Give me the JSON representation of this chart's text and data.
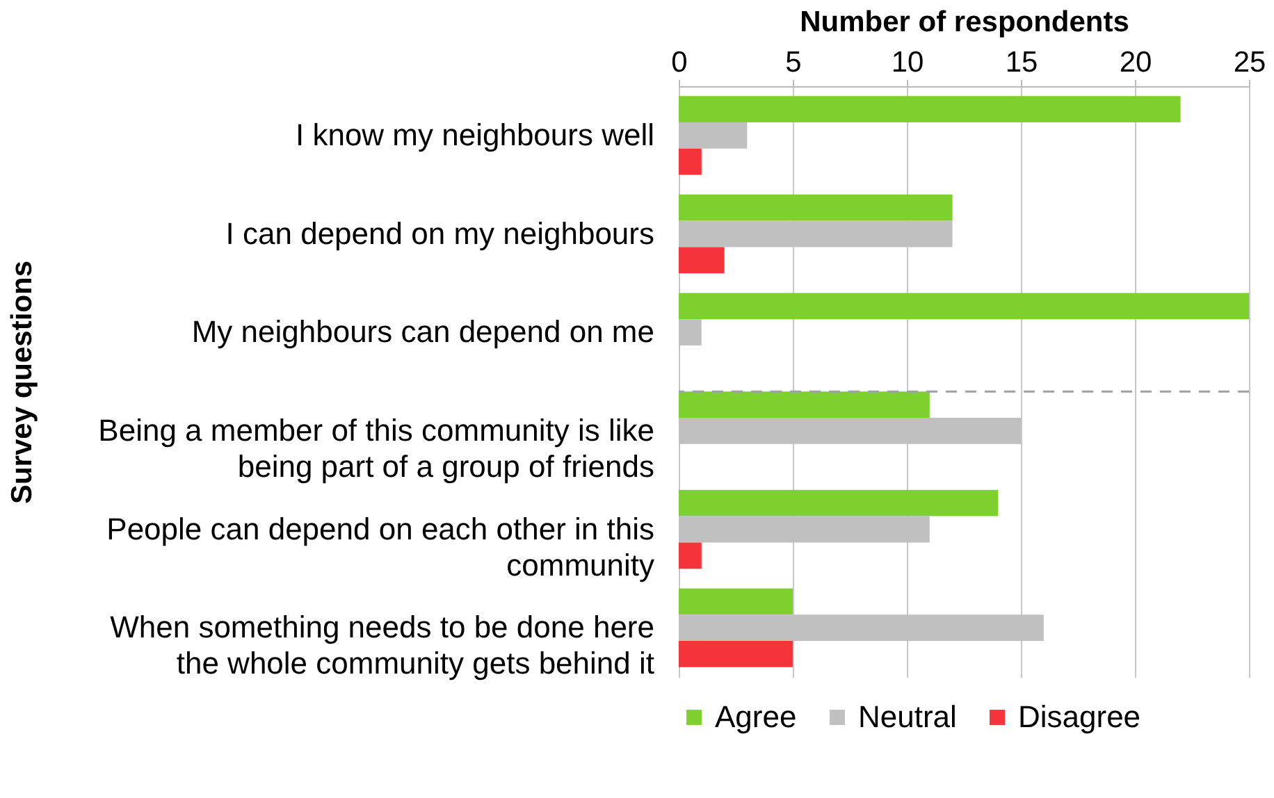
{
  "chart_data": {
    "type": "bar",
    "orientation": "horizontal",
    "xlabel": "Number of respondents",
    "ylabel": "Survey questions",
    "categories": [
      "I know my neighbours well",
      "I can depend on my neighbours",
      "My neighbours can depend on me",
      "Being a member of this community is like being part of a group of friends",
      "People can depend on each other in this community",
      "When something needs to be done here the whole community gets behind it"
    ],
    "series": [
      {
        "name": "Agree",
        "color": "#7ed02e",
        "values": [
          22,
          12,
          25,
          11,
          14,
          5
        ]
      },
      {
        "name": "Neutral",
        "color": "#c0c0c0",
        "values": [
          3,
          12,
          1,
          15,
          11,
          16
        ]
      },
      {
        "name": "Disagree",
        "color": "#f5333b",
        "values": [
          1,
          2,
          0,
          0,
          1,
          5
        ]
      }
    ],
    "xlim": [
      0,
      25
    ],
    "xticks": [
      0,
      5,
      10,
      15,
      20,
      25
    ],
    "grid": "x",
    "legend": "bottom",
    "ref_lines": [
      {
        "axis": "y",
        "value": "Being a member of this community is like being part of a group of friends",
        "line_style": "dashed",
        "color": "#a0a0a0"
      }
    ]
  }
}
